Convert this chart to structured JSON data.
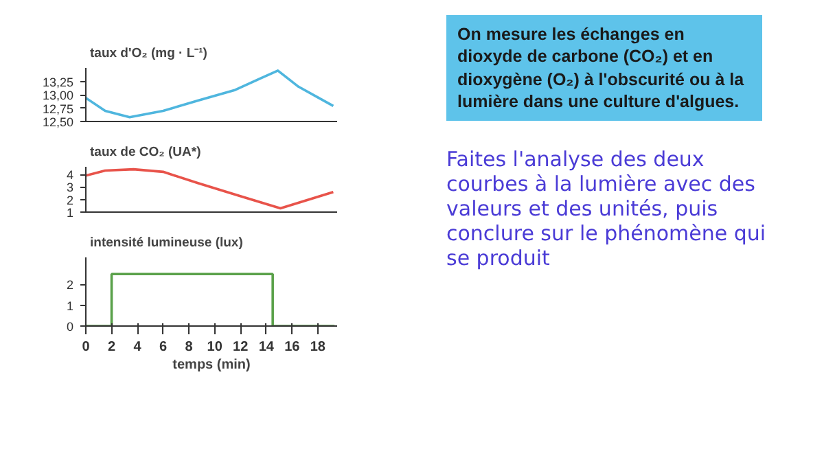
{
  "chart_data": [
    {
      "type": "line",
      "ylabel": "taux d'O₂ (mg · L⁻¹)",
      "x": [
        0,
        1.5,
        3.4,
        6,
        8.7,
        11.6,
        13.5,
        14.9,
        16.5,
        18,
        19.2
      ],
      "series": [
        {
          "color": "#4fb6de",
          "values": [
            12.94,
            12.7,
            12.58,
            12.7,
            12.89,
            13.09,
            13.3,
            13.45,
            13.15,
            12.95,
            12.79
          ]
        }
      ],
      "xlim": [
        0,
        19.5
      ],
      "ylim": [
        12.5,
        13.5
      ],
      "yticks": [
        {
          "value": 12.5,
          "label": "12,50"
        },
        {
          "value": 12.75,
          "label": "12,75"
        },
        {
          "value": 13.0,
          "label": "13,00"
        },
        {
          "value": 13.25,
          "label": "13,25"
        }
      ],
      "tick_labels": "y",
      "grid": false
    },
    {
      "type": "line",
      "ylabel": "taux de CO₂ (UA*)",
      "x": [
        0,
        1.5,
        3.7,
        6,
        8.7,
        11.9,
        15.1,
        17,
        19.2
      ],
      "series": [
        {
          "color": "#e8534a",
          "values": [
            3.9,
            4.3,
            4.4,
            4.2,
            3.3,
            2.3,
            1.3,
            1.9,
            2.6
          ]
        }
      ],
      "xlim": [
        0,
        19.5
      ],
      "ylim": [
        1,
        4.6
      ],
      "yticks": [
        1,
        2,
        3,
        4
      ],
      "tick_labels": "y",
      "grid": false
    },
    {
      "type": "step",
      "ylabel": "intensité lumineuse (lux)",
      "xlabel": "temps (min)",
      "x": [
        0,
        2,
        14.5,
        19.3
      ],
      "series": [
        {
          "color": "#5aa14a",
          "values": [
            0,
            2.5,
            0,
            0
          ]
        }
      ],
      "xlim": [
        0,
        19.5
      ],
      "ylim": [
        0,
        3.3
      ],
      "yticks": [
        0,
        1,
        2
      ],
      "xticks": [
        0,
        2,
        4,
        6,
        8,
        10,
        12,
        14,
        16,
        18
      ],
      "grid": false
    },
    {
      "type": "other",
      "annotations": [
        "On mesure les échanges en dioxyde de carbone (CO₂) et en dioxygène (O₂) à l'obscurité ou à la lumière dans une culture d'algues.",
        "Faites l'analyse des deux courbes à la lumière avec des valeurs et des unités, puis conclure sur le phénomène qui se produit"
      ]
    }
  ]
}
